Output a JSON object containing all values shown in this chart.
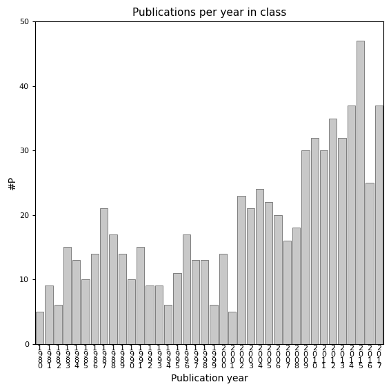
{
  "title": "Publications per year in class",
  "xlabel": "Publication year",
  "ylabel": "#P",
  "bar_color": "#c8c8c8",
  "bar_edgecolor": "#555555",
  "ylim": [
    0,
    50
  ],
  "yticks": [
    0,
    10,
    20,
    30,
    40,
    50
  ],
  "years": [
    1980,
    1981,
    1982,
    1983,
    1984,
    1985,
    1986,
    1987,
    1988,
    1989,
    1990,
    1991,
    1992,
    1993,
    1994,
    1995,
    1996,
    1997,
    1998,
    1999,
    2000,
    2001,
    2002,
    2003,
    2004,
    2005,
    2006,
    2007,
    2008,
    2009,
    2010,
    2011,
    2012,
    2013,
    2014,
    2015,
    2016,
    2017
  ],
  "values": [
    5,
    9,
    6,
    15,
    13,
    10,
    14,
    21,
    17,
    14,
    10,
    15,
    9,
    9,
    6,
    11,
    17,
    13,
    13,
    6,
    14,
    5,
    23,
    21,
    24,
    22,
    20,
    16,
    18,
    30,
    32,
    30,
    35,
    32,
    37,
    47,
    25,
    37
  ],
  "background_color": "#ffffff",
  "title_fontsize": 11,
  "label_fontsize": 10,
  "tick_fontsize": 8
}
